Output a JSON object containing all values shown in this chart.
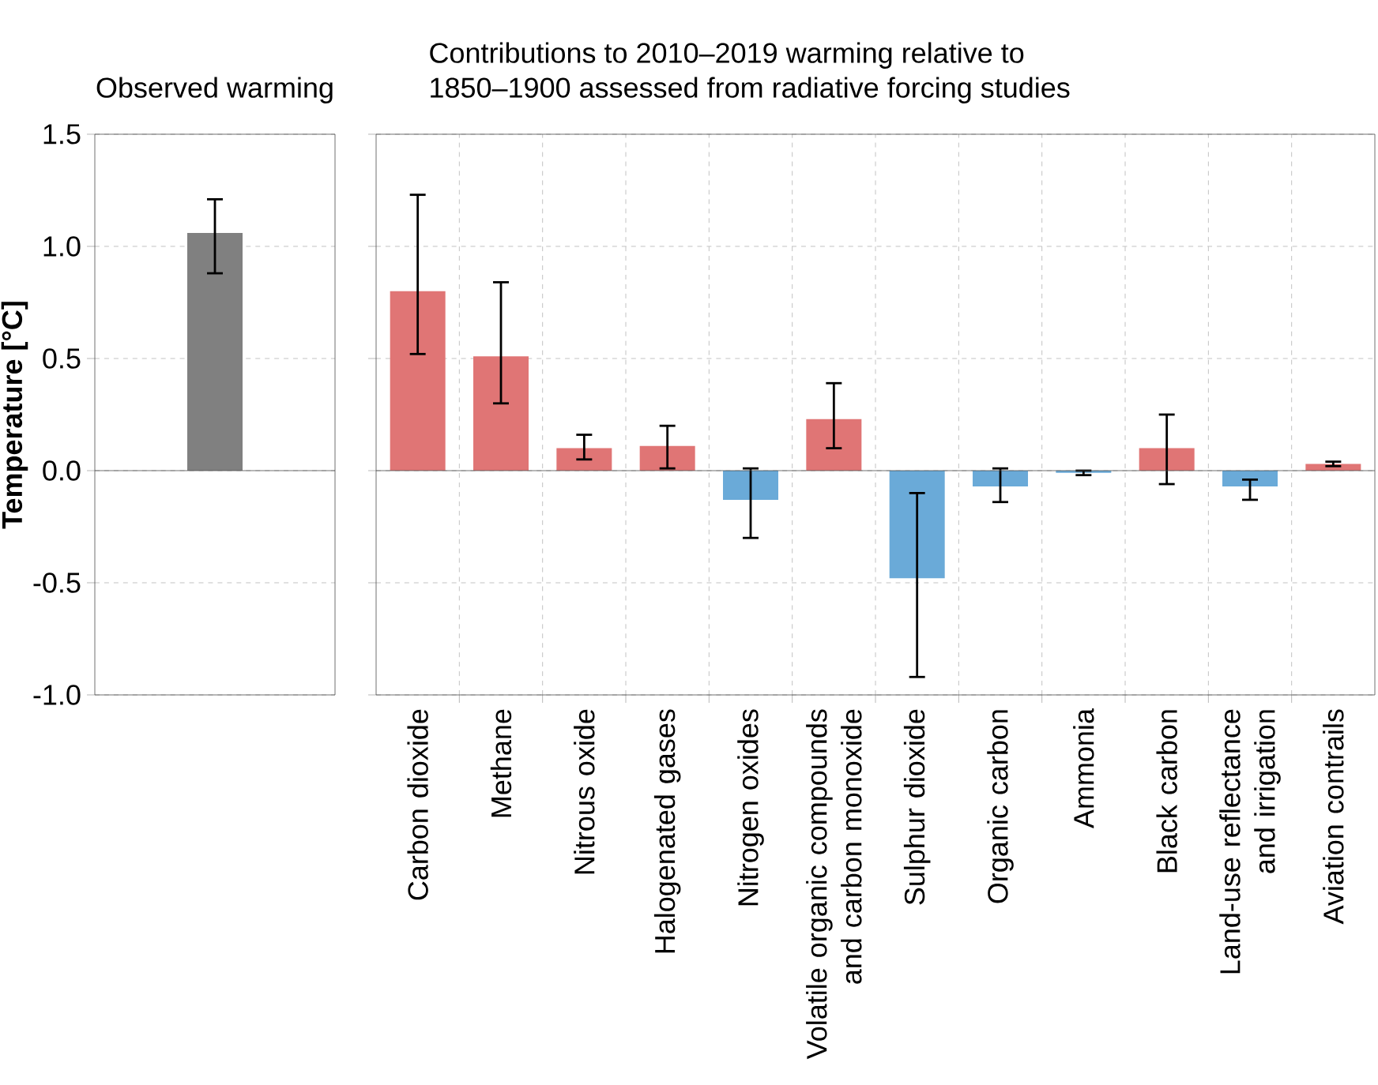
{
  "chart_data": [
    {
      "type": "bar",
      "title": "Observed warming",
      "ylabel": "Temperature [°C]",
      "categories": [
        null
      ],
      "values": [
        1.06
      ],
      "color": "#808080",
      "errors": [
        [
          0.88,
          1.21
        ]
      ],
      "ylim": [
        -1.0,
        1.5
      ],
      "yticks": [
        {
          "value": -1.0,
          "label": "-1.0"
        },
        {
          "value": -0.5,
          "label": "-0.5"
        },
        {
          "value": 0.0,
          "label": "0.0"
        },
        {
          "value": 0.5,
          "label": "0.5"
        },
        {
          "value": 1.0,
          "label": "1.0"
        },
        {
          "value": 1.5,
          "label": "1.5"
        }
      ],
      "grid": "y"
    },
    {
      "type": "bar",
      "title": "Contributions to 2010–2019 warming relative to 1850–1900 assessed from radiative forcing studies",
      "categories": [
        "Carbon dioxide",
        "Methane",
        "Nitrous oxide",
        "Halogenated gases",
        "Nitrogen oxides",
        "Volatile organic compounds and carbon monoxide",
        "Sulphur dioxide",
        "Organic carbon",
        "Ammonia",
        "Black carbon",
        "Land-use reflectance and irrigation",
        "Aviation contrails"
      ],
      "values": [
        0.8,
        0.51,
        0.1,
        0.11,
        -0.13,
        0.23,
        -0.48,
        -0.07,
        -0.01,
        0.1,
        -0.07,
        0.03
      ],
      "tick_labels": "x",
      "colors": [
        "#e07575",
        "#e07575",
        "#e07575",
        "#e07575",
        "#6aaad8",
        "#e07575",
        "#6aaad8",
        "#6aaad8",
        "#6aaad8",
        "#e07575",
        "#6aaad8",
        "#e07575"
      ],
      "errors": [
        [
          0.52,
          1.23
        ],
        [
          0.3,
          0.84
        ],
        [
          0.05,
          0.16
        ],
        [
          0.01,
          0.2
        ],
        [
          -0.3,
          0.01
        ],
        [
          0.1,
          0.39
        ],
        [
          -0.92,
          -0.1
        ],
        [
          -0.14,
          0.01
        ],
        [
          -0.02,
          0.0
        ],
        [
          -0.06,
          0.25
        ],
        [
          -0.13,
          -0.04
        ],
        [
          0.02,
          0.04
        ]
      ],
      "ylim": [
        -1.0,
        1.5
      ],
      "yticks": [
        {
          "value": -1.0,
          "label": null
        },
        {
          "value": -0.5,
          "label": null
        },
        {
          "value": 0.0,
          "label": null
        },
        {
          "value": 0.5,
          "label": null
        },
        {
          "value": 1.0,
          "label": null
        },
        {
          "value": 1.5,
          "label": null
        }
      ],
      "grid": true
    }
  ]
}
